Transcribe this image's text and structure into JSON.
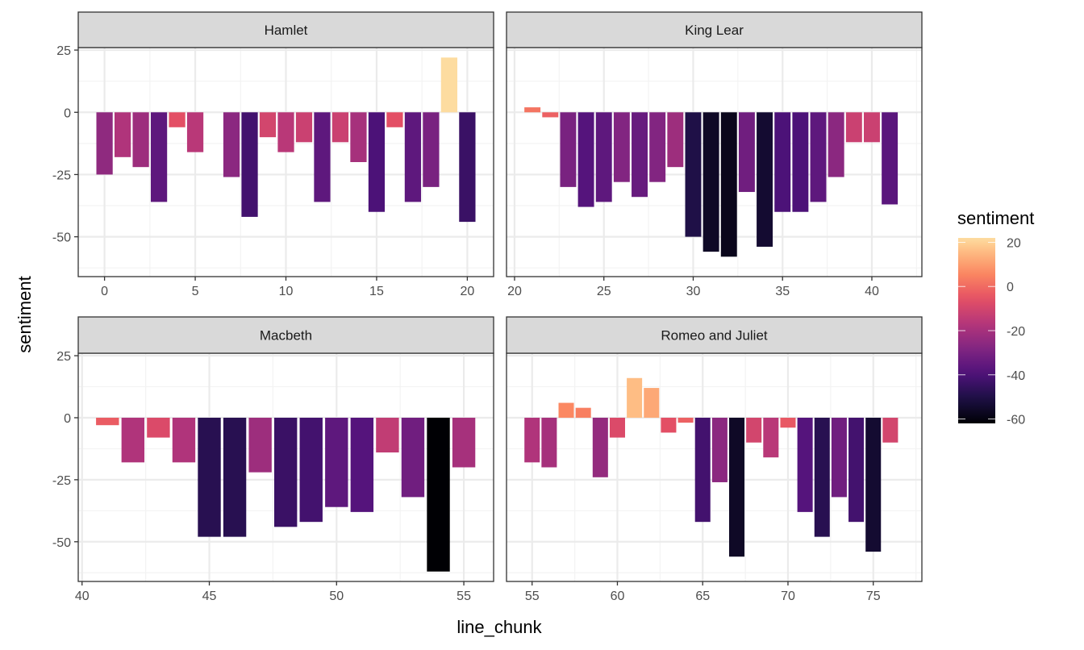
{
  "chart_data": {
    "type": "bar",
    "facet_layout": "2x2 grid, free x scales, shared y scale",
    "xlabel": "line_chunk",
    "ylabel": "sentiment",
    "y_ticks": [
      -50,
      -25,
      0,
      25
    ],
    "ylim": [
      -66,
      26
    ],
    "grid": true,
    "legend": {
      "title": "sentiment",
      "type": "colorbar",
      "palette": "magma",
      "placement": "right",
      "ticks": [
        20,
        0,
        -20,
        -40,
        -60
      ],
      "limits": [
        -62,
        22
      ]
    },
    "panels": [
      {
        "title": "Hamlet",
        "x_ticks": [
          0,
          5,
          10,
          15,
          20
        ],
        "xlim": [
          -1.45,
          21.45
        ],
        "x": [
          0,
          1,
          2,
          3,
          4,
          5,
          7,
          8,
          9,
          10,
          11,
          12,
          13,
          14,
          15,
          16,
          17,
          18,
          19,
          20
        ],
        "values": [
          -25,
          -18,
          -22,
          -36,
          -6,
          -16,
          -26,
          -42,
          -10,
          -16,
          -12,
          -36,
          -12,
          -20,
          -40,
          -6,
          -36,
          -30,
          22,
          -44
        ]
      },
      {
        "title": "King Lear",
        "x_ticks": [
          20,
          25,
          30,
          35,
          40
        ],
        "xlim": [
          19.55,
          42.8
        ],
        "x": [
          21,
          22,
          23,
          24,
          25,
          26,
          27,
          28,
          29,
          30,
          31,
          32,
          33,
          34,
          35,
          36,
          37,
          38,
          39,
          40,
          41
        ],
        "values": [
          2,
          -2,
          -30,
          -38,
          -36,
          -28,
          -34,
          -28,
          -22,
          -50,
          -56,
          -58,
          -32,
          -54,
          -40,
          -40,
          -36,
          -26,
          -12,
          -12,
          -37
        ]
      },
      {
        "title": "Macbeth",
        "x_ticks": [
          40,
          45,
          50,
          55
        ],
        "xlim": [
          39.85,
          56.17
        ],
        "x": [
          41,
          42,
          43,
          44,
          45,
          46,
          47,
          48,
          49,
          50,
          51,
          52,
          53,
          54,
          55
        ],
        "values": [
          -3,
          -18,
          -8,
          -18,
          -48,
          -48,
          -22,
          -44,
          -42,
          -36,
          -38,
          -14,
          -32,
          -62,
          -20
        ]
      },
      {
        "title": "Romeo and Juliet",
        "x_ticks": [
          55,
          60,
          65,
          70,
          75
        ],
        "xlim": [
          53.5,
          77.85
        ],
        "x": [
          55,
          56,
          57,
          58,
          59,
          60,
          61,
          62,
          63,
          64,
          65,
          66,
          67,
          68,
          69,
          70,
          71,
          72,
          73,
          74,
          75,
          76
        ],
        "values": [
          -18,
          -20,
          6,
          4,
          -24,
          -8,
          16,
          12,
          -6,
          -2,
          -42,
          -26,
          -56,
          -10,
          -16,
          -4,
          -38,
          -48,
          -32,
          -42,
          -54,
          -10
        ]
      }
    ]
  },
  "colors": {
    "strip_fill": "#d9d9d9",
    "panel_border": "#333333",
    "grid_major": "#ebebeb",
    "grid_minor": "#f3f3f3",
    "magma_stops": [
      "#000004",
      "#1c1044",
      "#4f127b",
      "#812581",
      "#b5367a",
      "#e55064",
      "#fb8761",
      "#fec287",
      "#fcfdbf"
    ]
  }
}
